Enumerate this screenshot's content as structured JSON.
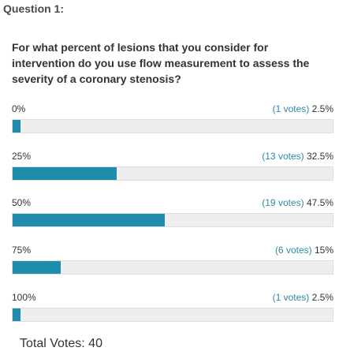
{
  "poll": {
    "heading": "Question 1:",
    "question": "For what percent of lesions that you consider for intervention do you use flow measurement to assess the severity of a coronary stenosis?",
    "bar_color": "#1f8cac",
    "options": [
      {
        "label": "0%",
        "votes_text": "(1 votes)",
        "percent_text": "2.5%",
        "percent": 2.5
      },
      {
        "label": "25%",
        "votes_text": "(13 votes)",
        "percent_text": "32.5%",
        "percent": 32.5
      },
      {
        "label": "50%",
        "votes_text": "(19 votes)",
        "percent_text": "47.5%",
        "percent": 47.5
      },
      {
        "label": "75%",
        "votes_text": "(6 votes)",
        "percent_text": "15%",
        "percent": 15
      },
      {
        "label": "100%",
        "votes_text": "(1 votes)",
        "percent_text": "2.5%",
        "percent": 2.5
      }
    ],
    "total_votes": "Total Votes: 40"
  }
}
